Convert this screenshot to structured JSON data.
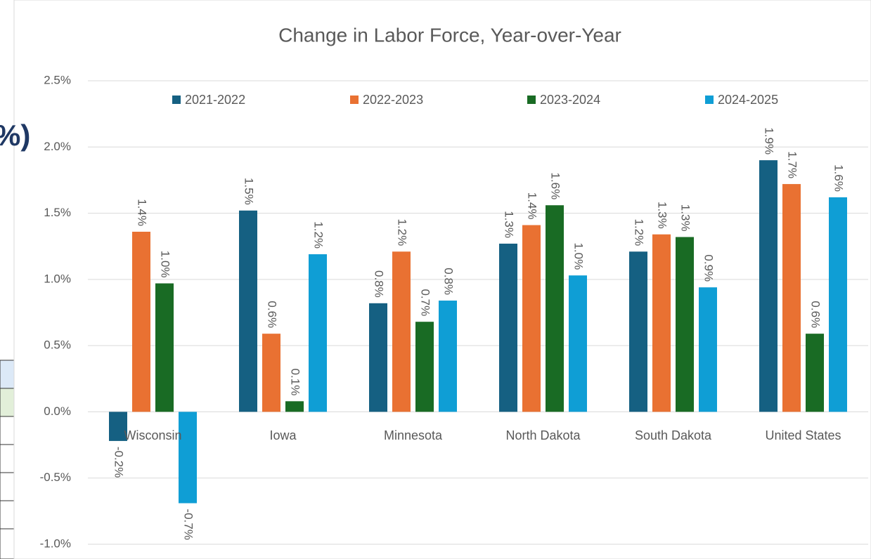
{
  "background_text": "%)",
  "chart_data": {
    "type": "bar",
    "title": "Change in Labor Force, Year-over-Year",
    "categories": [
      "Wisconsin",
      "Iowa",
      "Minnesota",
      "North Dakota",
      "South Dakota",
      "United States"
    ],
    "series": [
      {
        "name": "2021-2022",
        "color": "#156082",
        "values": [
          -0.22,
          1.52,
          0.82,
          1.27,
          1.21,
          1.9
        ],
        "value_labels": [
          "-0.2%",
          "1.5%",
          "0.8%",
          "1.3%",
          "1.2%",
          "1.9%"
        ]
      },
      {
        "name": "2022-2023",
        "color": "#e97132",
        "values": [
          1.36,
          0.59,
          1.21,
          1.41,
          1.34,
          1.72
        ],
        "value_labels": [
          "1.4%",
          "0.6%",
          "1.2%",
          "1.4%",
          "1.3%",
          "1.7%"
        ]
      },
      {
        "name": "2023-2024",
        "color": "#196b24",
        "values": [
          0.97,
          0.08,
          0.68,
          1.56,
          1.32,
          0.59
        ],
        "value_labels": [
          "1.0%",
          "0.1%",
          "0.7%",
          "1.6%",
          "1.3%",
          "0.6%"
        ]
      },
      {
        "name": "2024-2025",
        "color": "#0f9ed5",
        "values": [
          -0.69,
          1.19,
          0.84,
          1.03,
          0.94,
          1.62
        ],
        "value_labels": [
          "-0.7%",
          "1.2%",
          "0.8%",
          "1.0%",
          "0.9%",
          "1.6%"
        ]
      }
    ],
    "ylim": [
      -1.0,
      2.5
    ],
    "yticks": [
      {
        "value": -1.0,
        "label": "-1.0%"
      },
      {
        "value": -0.5,
        "label": "-0.5%"
      },
      {
        "value": 0.0,
        "label": "0.0%"
      },
      {
        "value": 0.5,
        "label": "0.5%"
      },
      {
        "value": 1.0,
        "label": "1.0%"
      },
      {
        "value": 1.5,
        "label": "1.5%"
      },
      {
        "value": 2.0,
        "label": "2.0%"
      },
      {
        "value": 2.5,
        "label": "2.5%"
      }
    ],
    "grid": true,
    "legend": "top"
  }
}
